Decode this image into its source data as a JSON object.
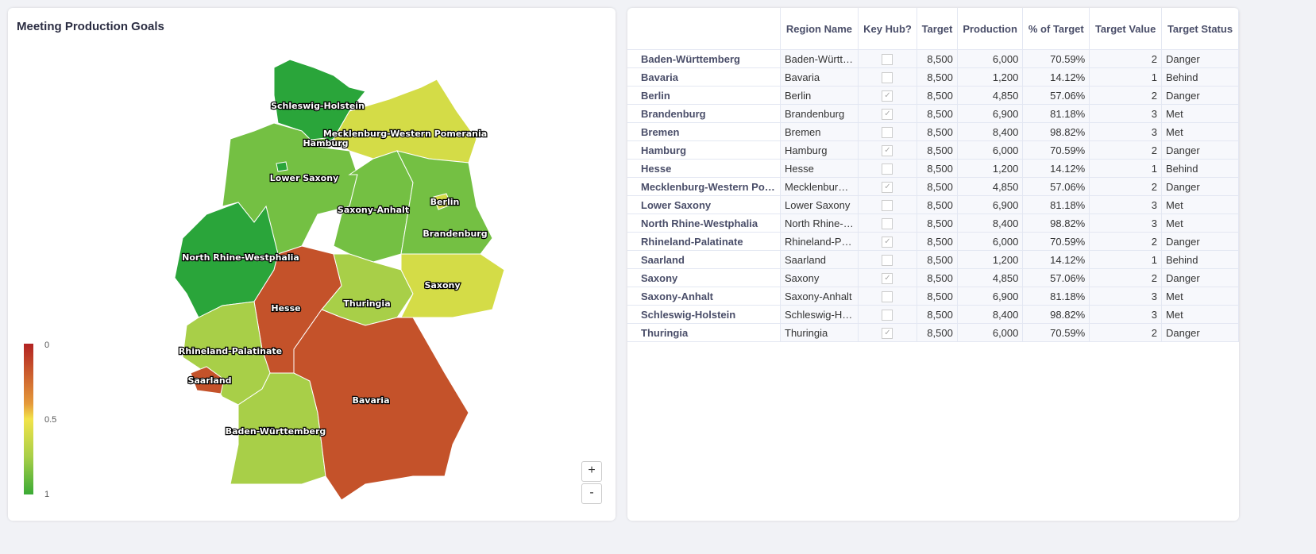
{
  "map": {
    "title": "Meeting Production Goals",
    "legend": {
      "labels": [
        "0",
        "0.5",
        "1"
      ],
      "colors": [
        "#b22222",
        "#f2e34a",
        "#3aaa35"
      ]
    },
    "zoom_in": "+",
    "zoom_out": "-",
    "regions": [
      {
        "name": "Schleswig-Holstein",
        "color": "#2aa53a"
      },
      {
        "name": "Hamburg",
        "color": "#74c043"
      },
      {
        "name": "Mecklenburg-Western Pomerania",
        "color": "#d4dc47"
      },
      {
        "name": "Lower Saxony",
        "color": "#74c043"
      },
      {
        "name": "Bremen",
        "color": "#2aa53a"
      },
      {
        "name": "Saxony-Anhalt",
        "color": "#74c043"
      },
      {
        "name": "Brandenburg",
        "color": "#74c043"
      },
      {
        "name": "Berlin",
        "color": "#d4dc47"
      },
      {
        "name": "North Rhine-Westphalia",
        "color": "#2aa53a"
      },
      {
        "name": "Hesse",
        "color": "#c4522a"
      },
      {
        "name": "Thuringia",
        "color": "#a8cf48"
      },
      {
        "name": "Saxony",
        "color": "#d4dc47"
      },
      {
        "name": "Rhineland-Palatinate",
        "color": "#a8cf48"
      },
      {
        "name": "Saarland",
        "color": "#c4522a"
      },
      {
        "name": "Baden-Württemberg",
        "color": "#a8cf48"
      },
      {
        "name": "Bavaria",
        "color": "#c4522a"
      }
    ]
  },
  "table": {
    "headers": [
      "",
      "Region Name",
      "Key Hub?",
      "Target",
      "Production",
      "% of Target",
      "Target Value",
      "Target Status"
    ],
    "rows": [
      [
        "Baden-Württemberg",
        "Baden-Württemberg",
        false,
        "8,500",
        "6,000",
        "70.59%",
        "2",
        "Danger"
      ],
      [
        "Bavaria",
        "Bavaria",
        false,
        "8,500",
        "1,200",
        "14.12%",
        "1",
        "Behind"
      ],
      [
        "Berlin",
        "Berlin",
        true,
        "8,500",
        "4,850",
        "57.06%",
        "2",
        "Danger"
      ],
      [
        "Brandenburg",
        "Brandenburg",
        true,
        "8,500",
        "6,900",
        "81.18%",
        "3",
        "Met"
      ],
      [
        "Bremen",
        "Bremen",
        false,
        "8,500",
        "8,400",
        "98.82%",
        "3",
        "Met"
      ],
      [
        "Hamburg",
        "Hamburg",
        true,
        "8,500",
        "6,000",
        "70.59%",
        "2",
        "Danger"
      ],
      [
        "Hesse",
        "Hesse",
        false,
        "8,500",
        "1,200",
        "14.12%",
        "1",
        "Behind"
      ],
      [
        "Mecklenburg-Western Pomerania",
        "Mecklenburg-Western Pomerania",
        true,
        "8,500",
        "4,850",
        "57.06%",
        "2",
        "Danger"
      ],
      [
        "Lower Saxony",
        "Lower Saxony",
        false,
        "8,500",
        "6,900",
        "81.18%",
        "3",
        "Met"
      ],
      [
        "North Rhine-Westphalia",
        "North Rhine-Westphalia",
        false,
        "8,500",
        "8,400",
        "98.82%",
        "3",
        "Met"
      ],
      [
        "Rhineland-Palatinate",
        "Rhineland-Palatinate",
        true,
        "8,500",
        "6,000",
        "70.59%",
        "2",
        "Danger"
      ],
      [
        "Saarland",
        "Saarland",
        false,
        "8,500",
        "1,200",
        "14.12%",
        "1",
        "Behind"
      ],
      [
        "Saxony",
        "Saxony",
        true,
        "8,500",
        "4,850",
        "57.06%",
        "2",
        "Danger"
      ],
      [
        "Saxony-Anhalt",
        "Saxony-Anhalt",
        false,
        "8,500",
        "6,900",
        "81.18%",
        "3",
        "Met"
      ],
      [
        "Schleswig-Holstein",
        "Schleswig-Holstein",
        false,
        "8,500",
        "8,400",
        "98.82%",
        "3",
        "Met"
      ],
      [
        "Thuringia",
        "Thuringia",
        true,
        "8,500",
        "6,000",
        "70.59%",
        "2",
        "Danger"
      ]
    ]
  }
}
